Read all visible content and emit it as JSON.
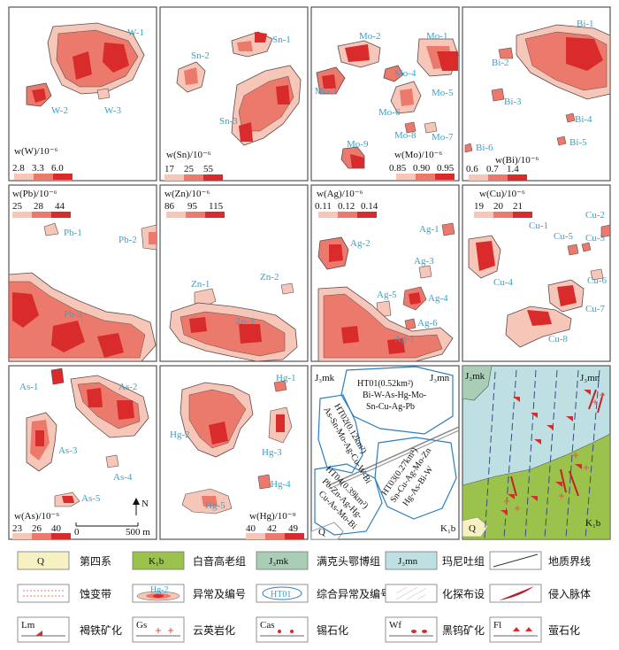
{
  "colors": {
    "low": "#f6c6b9",
    "mid": "#ec7a6c",
    "high": "#d92b2b",
    "label": "#2aa6d6",
    "outline": "#5a4a4a",
    "frame": "#555555",
    "ht_outline": "#2a7fc0",
    "quaternary": "#f7f0c2",
    "k1b": "#9bc24a",
    "j3mk": "#a9cdb5",
    "j3mn": "#bfe0e2"
  },
  "panels": [
    {
      "element_label": "w(W)/10⁻⁶",
      "thresholds": [
        "2.8",
        "3.3",
        "6.0"
      ],
      "anomalies": [
        "W-1",
        "W-2",
        "W-3"
      ]
    },
    {
      "element_label": "w(Sn)/10⁻⁶",
      "thresholds": [
        "17",
        "25",
        "55"
      ],
      "anomalies": [
        "Sn-1",
        "Sn-2",
        "Sn-3"
      ]
    },
    {
      "element_label": "w(Mo)/10⁻⁶",
      "thresholds": [
        "0.85",
        "0.90",
        "0.95"
      ],
      "anomalies": [
        "Mo-1",
        "Mo-2",
        "Mo-3",
        "Mo-4",
        "Mo-5",
        "Mo-6",
        "Mo-7",
        "Mo-8",
        "Mo-9"
      ]
    },
    {
      "element_label": "w(Bi)/10⁻⁶",
      "thresholds": [
        "0.6",
        "0.7",
        "1.4"
      ],
      "anomalies": [
        "Bi-1",
        "Bi-2",
        "Bi-3",
        "Bi-4",
        "Bi-5",
        "Bi-6"
      ]
    },
    {
      "element_label": "w(Pb)/10⁻⁶",
      "thresholds": [
        "25",
        "28",
        "44"
      ],
      "anomalies": [
        "Pb-1",
        "Pb-2",
        "Pb-3"
      ]
    },
    {
      "element_label": "w(Zn)/10⁻⁶",
      "thresholds": [
        "86",
        "95",
        "115"
      ],
      "anomalies": [
        "Zn-1",
        "Zn-2",
        "Zn-3"
      ]
    },
    {
      "element_label": "w(Ag)/10⁻⁶",
      "thresholds": [
        "0.11",
        "0.12",
        "0.14"
      ],
      "anomalies": [
        "Ag-1",
        "Ag-2",
        "Ag-3",
        "Ag-4",
        "Ag-5",
        "Ag-6",
        "Ag-7"
      ]
    },
    {
      "element_label": "w(Cu)/10⁻⁶",
      "thresholds": [
        "19",
        "20",
        "21"
      ],
      "anomalies": [
        "Cu-1",
        "Cu-2",
        "Cu-3",
        "Cu-4",
        "Cu-5",
        "Cu-6",
        "Cu-7",
        "Cu-8"
      ]
    },
    {
      "element_label": "w(As)/10⁻⁶",
      "thresholds": [
        "23",
        "26",
        "40"
      ],
      "anomalies": [
        "As-1",
        "As-2",
        "As-3",
        "As-4",
        "As-5"
      ]
    },
    {
      "element_label": "w(Hg)/10⁻⁹",
      "thresholds": [
        "40",
        "42",
        "49"
      ],
      "anomalies": [
        "Hg-1",
        "Hg-2",
        "Hg-3",
        "Hg-4",
        "Hg-5"
      ]
    }
  ],
  "scale_bar": {
    "start": "0",
    "end": "500 m"
  },
  "north_arrow": "N",
  "composite_panel": {
    "unit_labels": [
      "J₃mk",
      "J₃mn",
      "Q",
      "K₁b"
    ],
    "ht": [
      {
        "id": "HT01",
        "text": [
          "HT01(0.52km²)",
          "Bi-W-As-Hg-Mo-",
          "Sn-Cu-Ag-Pb"
        ]
      },
      {
        "id": "HT02",
        "text": [
          "HT02(0.12km²)",
          "As-Sn-Mo-Ag-Cu-W-Bi"
        ]
      },
      {
        "id": "HT03",
        "text": [
          "HT03(0.27km²)",
          "Sn-Cu-Ag-Mo-Zn",
          "Hg-As-Bi-W"
        ]
      },
      {
        "id": "HT04",
        "text": [
          "HT04(0.39km²)",
          "Pb-Zn-Ag-Hg-",
          "Cu-As-Mo-Bi"
        ]
      }
    ]
  },
  "geology_panel": {
    "unit_labels": [
      "J₃mk",
      "J₃mn",
      "Q",
      "K₁b"
    ]
  },
  "legend": {
    "row1": [
      {
        "symbol": "Q",
        "label": "第四系"
      },
      {
        "symbol": "K₁b",
        "label": "白音高老组"
      },
      {
        "symbol": "J₃mk",
        "label": "满克头鄂博组"
      },
      {
        "symbol": "J₃mn",
        "label": "玛尼吐组"
      },
      {
        "symbol": "",
        "label": "地质界线"
      }
    ],
    "row2": [
      {
        "symbol": "",
        "label": "蚀变带"
      },
      {
        "symbol": "Hg-2",
        "label": "异常及编号"
      },
      {
        "symbol": "HT01",
        "label": "综合异常及编号"
      },
      {
        "symbol": "",
        "label": "化探布设"
      },
      {
        "symbol": "",
        "label": "侵入脉体"
      }
    ],
    "row3": [
      {
        "symbol": "Lm",
        "label": "褐铁矿化"
      },
      {
        "symbol": "Gs",
        "label": "云英岩化"
      },
      {
        "symbol": "Cas",
        "label": "锡石化"
      },
      {
        "symbol": "Wf",
        "label": "黑钨矿化"
      },
      {
        "symbol": "Fl",
        "label": "萤石化"
      }
    ]
  }
}
